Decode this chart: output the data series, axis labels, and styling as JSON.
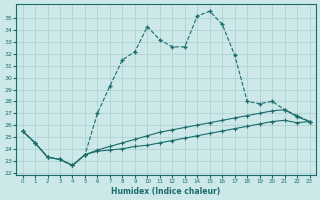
{
  "xlabel": "Humidex (Indice chaleur)",
  "background_color": "#cce8e8",
  "grid_color": "#aacece",
  "line_color": "#1a6b6b",
  "x": [
    0,
    1,
    2,
    3,
    4,
    5,
    6,
    7,
    8,
    9,
    10,
    11,
    12,
    13,
    14,
    15,
    16,
    17,
    18,
    19,
    20,
    21,
    22,
    23
  ],
  "series_top": [
    25.5,
    24.5,
    23.3,
    23.1,
    22.6,
    23.5,
    27.0,
    29.3,
    31.5,
    32.2,
    34.3,
    33.2,
    32.6,
    32.6,
    35.2,
    35.6,
    34.5,
    31.9,
    28.0,
    27.8,
    28.0,
    27.3,
    26.8,
    26.3
  ],
  "series_min": [
    25.5,
    24.5,
    23.3,
    23.1,
    22.6,
    23.5,
    23.8,
    23.9,
    24.0,
    24.2,
    24.3,
    24.5,
    24.7,
    24.9,
    25.1,
    25.3,
    25.5,
    25.7,
    25.9,
    26.1,
    26.3,
    26.4,
    26.2,
    26.3
  ],
  "series_mid": [
    25.5,
    24.5,
    23.3,
    23.1,
    22.6,
    23.5,
    23.9,
    24.2,
    24.5,
    24.8,
    25.1,
    25.4,
    25.6,
    25.8,
    26.0,
    26.2,
    26.4,
    26.6,
    26.8,
    27.0,
    27.2,
    27.3,
    26.7,
    26.3
  ],
  "yticks": [
    22,
    23,
    24,
    25,
    26,
    27,
    28,
    29,
    30,
    31,
    32,
    33,
    34,
    35
  ],
  "ylim": [
    21.8,
    36.2
  ],
  "xlim": [
    -0.5,
    23.5
  ]
}
